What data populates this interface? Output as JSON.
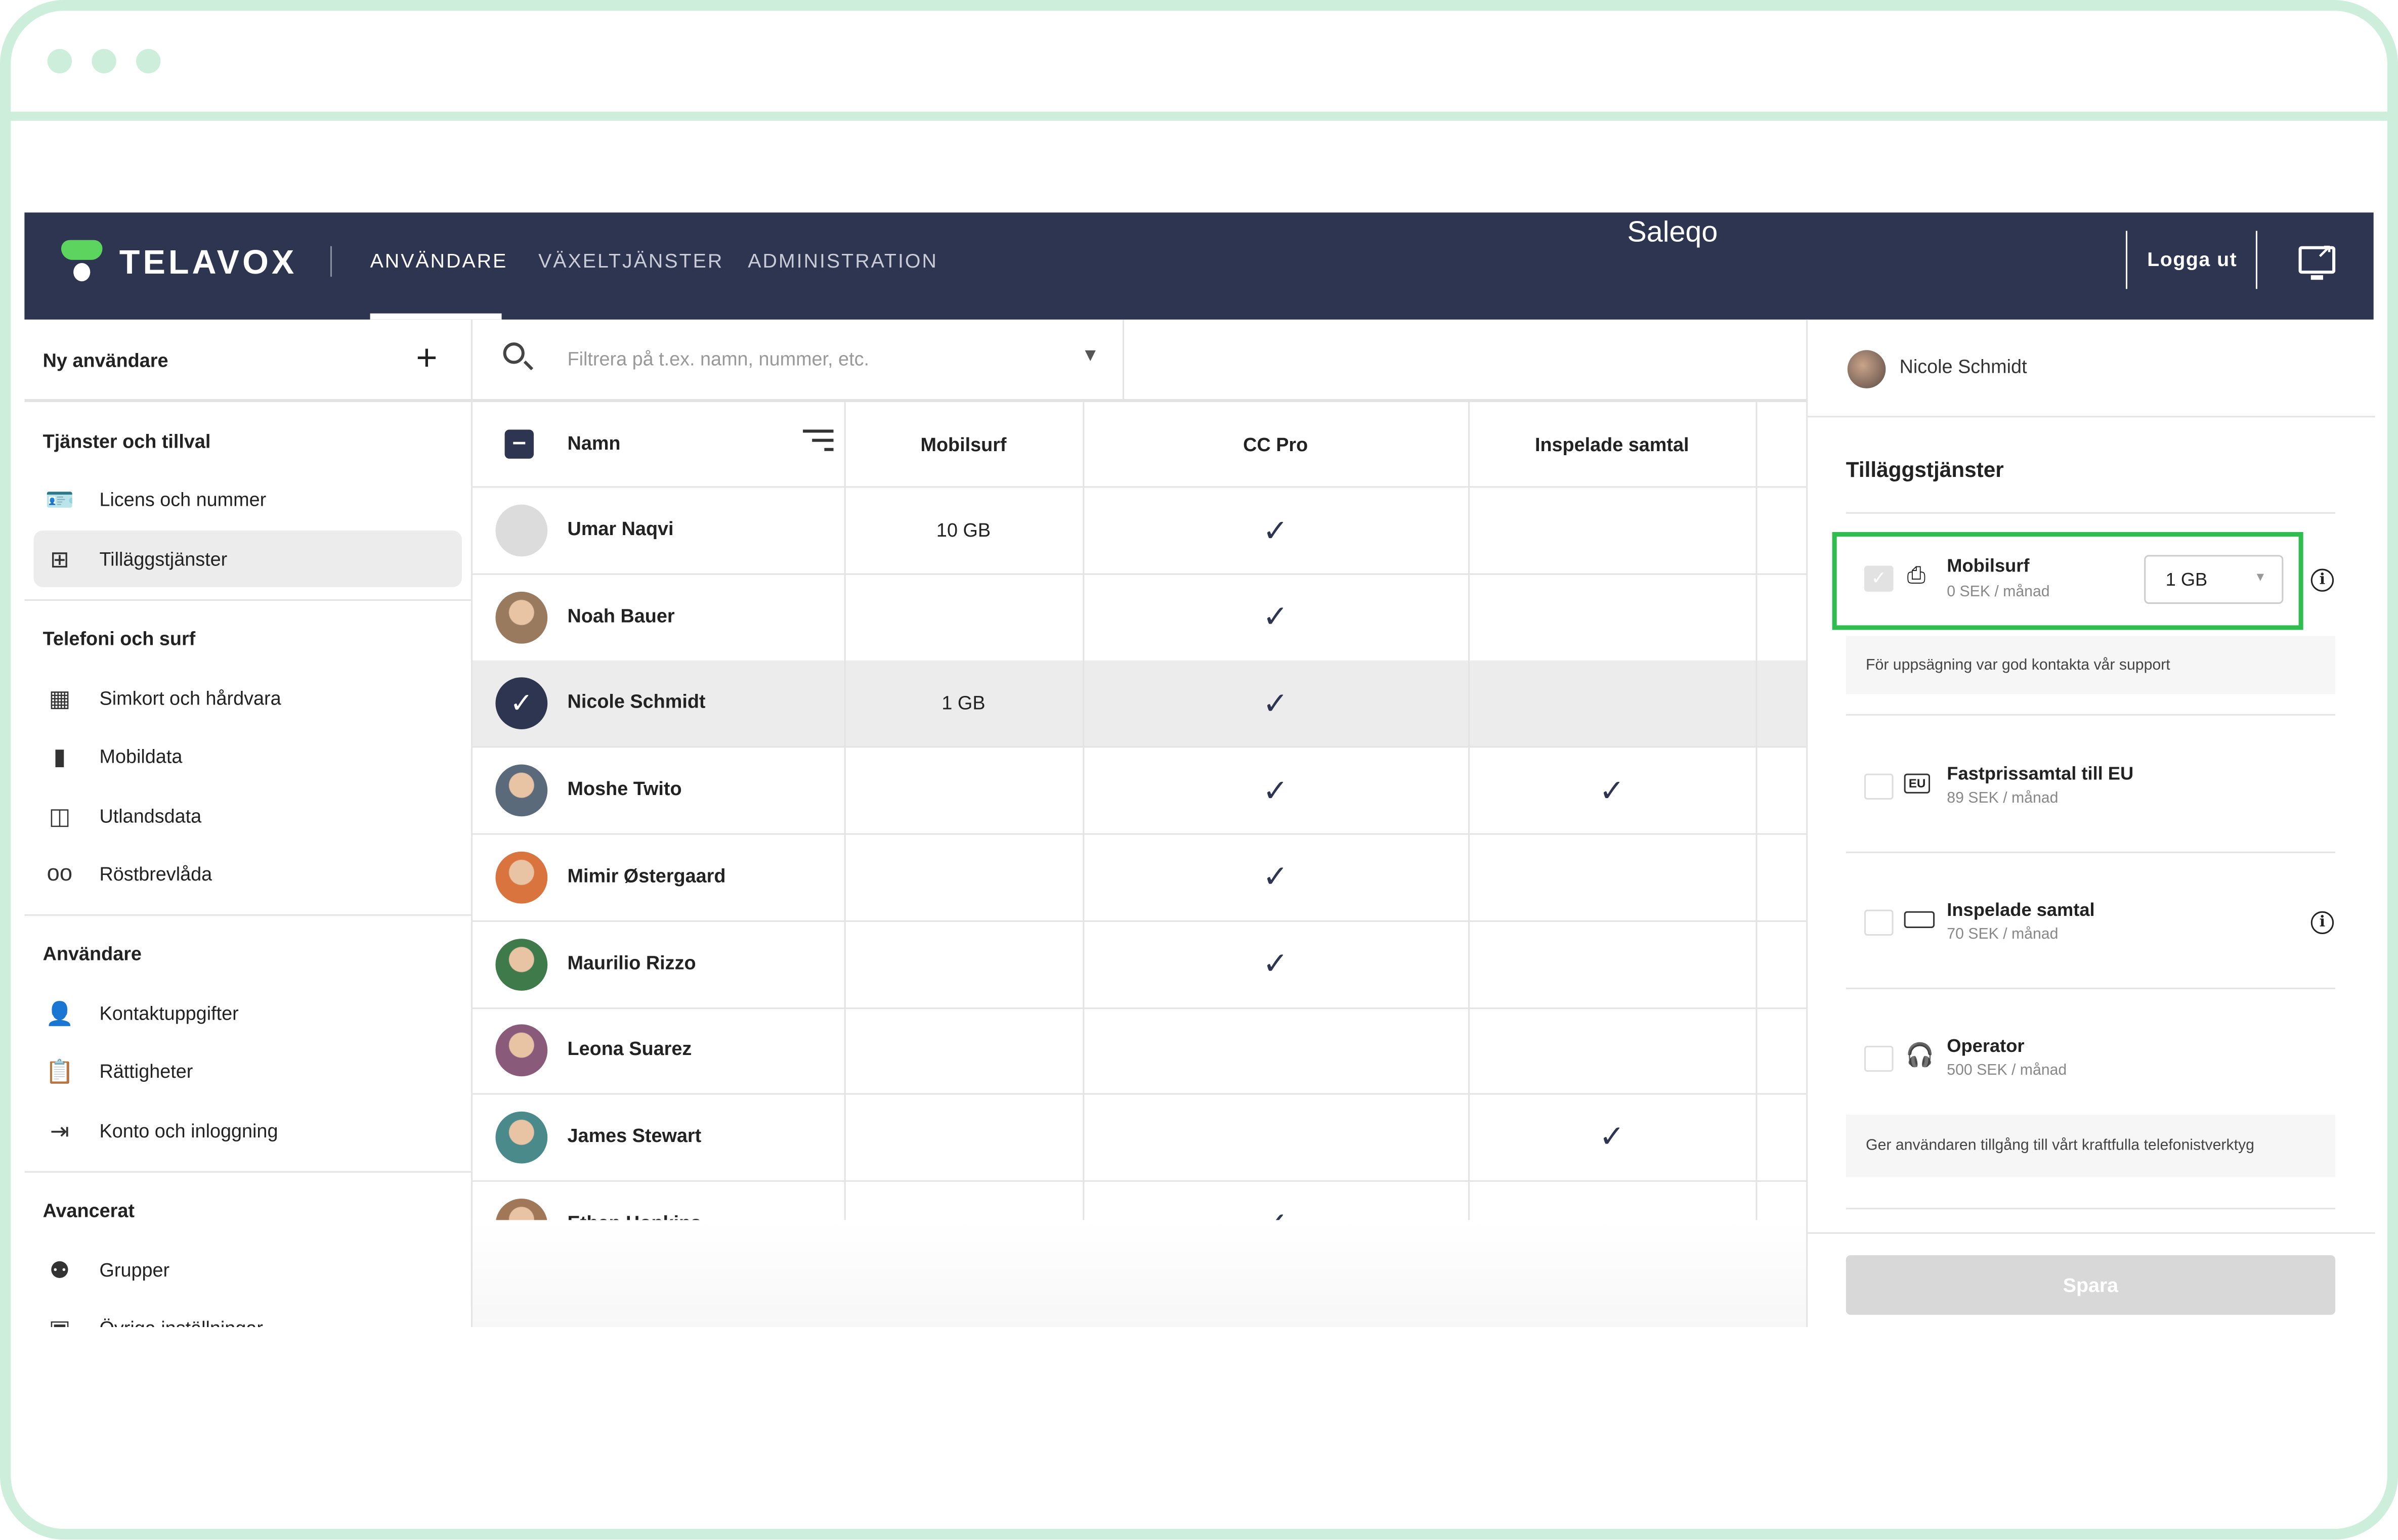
{
  "header": {
    "logo_text": "TELAVOX",
    "nav": [
      "ANVÄNDARE",
      "VÄXELTJÄNSTER",
      "ADMINISTRATION"
    ],
    "company": "Saleqo",
    "logout_label": "Logga ut",
    "colors": {
      "header_bg": "#2d3550",
      "logo_green": "#5dd45d",
      "highlight": "#2ebd4e"
    }
  },
  "sidebar": {
    "new_user_label": "Ny användare",
    "sections": [
      {
        "title": "Tjänster och tillval",
        "items": [
          {
            "label": "Licens och nummer",
            "icon": "contact-card-icon"
          },
          {
            "label": "Tilläggstjänster",
            "icon": "add-box-icon",
            "active": true
          }
        ]
      },
      {
        "title": "Telefoni och surf",
        "items": [
          {
            "label": "Simkort och hårdvara",
            "icon": "sim-card-icon"
          },
          {
            "label": "Mobildata",
            "icon": "bar-chart-icon"
          },
          {
            "label": "Utlandsdata",
            "icon": "globe-phone-icon"
          },
          {
            "label": "Röstbrevlåda",
            "icon": "voicemail-icon"
          }
        ]
      },
      {
        "title": "Användare",
        "items": [
          {
            "label": "Kontaktuppgifter",
            "icon": "person-icon"
          },
          {
            "label": "Rättigheter",
            "icon": "clipboard-icon"
          },
          {
            "label": "Konto och inloggning",
            "icon": "login-icon"
          }
        ]
      },
      {
        "title": "Avancerat",
        "items": [
          {
            "label": "Grupper",
            "icon": "groups-icon"
          },
          {
            "label": "Övriga inställningar",
            "icon": "settings-icon"
          }
        ]
      }
    ]
  },
  "table": {
    "filter_placeholder": "Filtrera på t.ex. namn, nummer, etc.",
    "columns": [
      "Namn",
      "Mobilsurf",
      "CC Pro",
      "Inspelade samtal"
    ],
    "rows": [
      {
        "name": "Umar Naqvi",
        "mobilsurf": "10 GB",
        "cc_pro": true,
        "recorded": false,
        "avatar": "#dcdcdc"
      },
      {
        "name": "Noah Bauer",
        "mobilsurf": "",
        "cc_pro": true,
        "recorded": false,
        "avatar": "#9a7a5e"
      },
      {
        "name": "Nicole Schmidt",
        "mobilsurf": "1 GB",
        "cc_pro": true,
        "recorded": false,
        "selected": true,
        "avatar": "#2d3550"
      },
      {
        "name": "Moshe Twito",
        "mobilsurf": "",
        "cc_pro": true,
        "recorded": true,
        "avatar": "#5b6a7a"
      },
      {
        "name": "Mimir Østergaard",
        "mobilsurf": "",
        "cc_pro": true,
        "recorded": false,
        "avatar": "#d9743f"
      },
      {
        "name": "Maurilio Rizzo",
        "mobilsurf": "",
        "cc_pro": true,
        "recorded": false,
        "avatar": "#3f7a4a"
      },
      {
        "name": "Leona Suarez",
        "mobilsurf": "",
        "cc_pro": false,
        "recorded": false,
        "avatar": "#8a5a7a"
      },
      {
        "name": "James Stewart",
        "mobilsurf": "",
        "cc_pro": false,
        "recorded": true,
        "avatar": "#4a8a8a"
      },
      {
        "name": "Ethan Hopkins",
        "mobilsurf": "",
        "cc_pro": true,
        "recorded": false,
        "avatar": "#a07858"
      }
    ]
  },
  "panel": {
    "user_name": "Nicole Schmidt",
    "title": "Tilläggstjänster",
    "services": [
      {
        "name": "Mobilsurf",
        "price": "0 SEK / månad",
        "checked": true,
        "disabled": true,
        "select_value": "1 GB",
        "icon": "phone-globe-icon",
        "info": true
      },
      {
        "name": "Fastprissamtal till EU",
        "price": "89 SEK / månad",
        "checked": false,
        "icon": "eu-phone-icon"
      },
      {
        "name": "Inspelade samtal",
        "price": "70 SEK / månad",
        "checked": false,
        "icon": "recording-icon",
        "info": true
      },
      {
        "name": "Operator",
        "price": "500 SEK / månad",
        "checked": false,
        "icon": "headset-icon"
      }
    ],
    "notes": [
      "För uppsägning var god kontakta vår support",
      "Ger användaren tillgång till vårt kraftfulla telefonistverktyg"
    ],
    "save_label": "Spara"
  }
}
